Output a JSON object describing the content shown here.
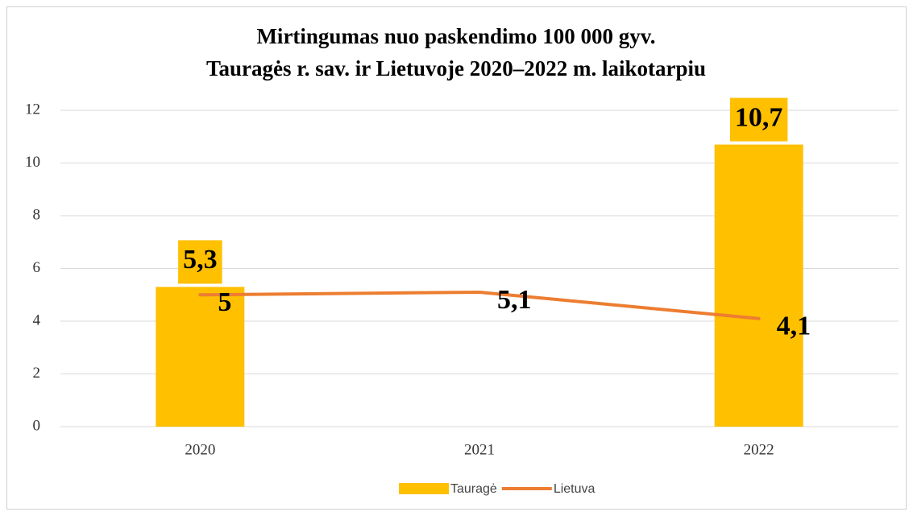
{
  "chart_data": {
    "type": "bar",
    "title": [
      "Mirtingumas nuo paskendimo 100 000 gyv.",
      "Tauragės r. sav. ir Lietuvoje 2020–2022 m. laikotarpiu"
    ],
    "categories": [
      "2020",
      "2021",
      "2022"
    ],
    "series": [
      {
        "name": "Tauragė",
        "type": "bar",
        "color": "#FFC000",
        "values": [
          5.3,
          null,
          10.7
        ],
        "value_labels": [
          "5,3",
          null,
          "10,7"
        ]
      },
      {
        "name": "Lietuva",
        "type": "line",
        "color": "#ED7D31",
        "values": [
          5,
          5.1,
          4.1
        ],
        "value_labels": [
          "5",
          "5,1",
          "4,1"
        ]
      }
    ],
    "ylim": [
      0,
      12
    ],
    "yticks": [
      0,
      2,
      4,
      6,
      8,
      10,
      12
    ],
    "grid": true,
    "legend": "bottom"
  }
}
